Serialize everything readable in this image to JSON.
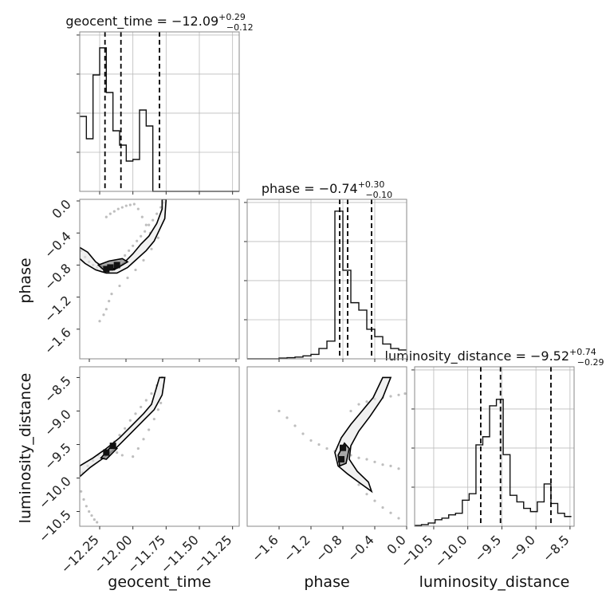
{
  "chart_data": [
    {
      "type": "histogram",
      "panel": "geocent_time-marginal",
      "title": {
        "param": "geocent_time",
        "median": "−12.09",
        "upper": "+0.29",
        "lower": "−0.12"
      },
      "x": [
        -12.4,
        -12.35,
        -12.3,
        -12.25,
        -12.2,
        -12.15,
        -12.1,
        -12.05,
        -12.0,
        -11.95,
        -11.9,
        -11.85,
        -11.8,
        -11.75,
        -11.7,
        -11.65,
        -11.6,
        -11.55,
        -11.5,
        -11.45,
        -11.4,
        -11.35,
        -11.3,
        -11.25,
        -11.2
      ],
      "values": [
        0.47,
        0.33,
        0.73,
        0.9,
        0.62,
        0.38,
        0.29,
        0.19,
        0.2,
        0.51,
        0.41,
        0.0,
        0.0,
        0.0,
        0.0,
        0.0,
        0.0,
        0.0,
        0.0,
        0.0,
        0.0,
        0.0,
        0.0,
        0.0
      ],
      "quantiles": [
        -12.21,
        -12.09,
        -11.8
      ],
      "xlim": [
        -12.4,
        -11.2
      ],
      "ylim": [
        0,
        1.0
      ],
      "xticks": [
        "−12.25",
        "−12.00",
        "−11.75",
        "−11.50",
        "−11.25"
      ],
      "xtick_values": [
        -12.25,
        -12.0,
        -11.75,
        -11.5,
        -11.25
      ],
      "yticks": 4,
      "grid": true
    },
    {
      "type": "histogram",
      "panel": "phase-marginal",
      "title": {
        "param": "phase",
        "median": "−0.74",
        "upper": "+0.30",
        "lower": "−0.10"
      },
      "x": [
        -2.0,
        -1.9,
        -1.8,
        -1.7,
        -1.6,
        -1.5,
        -1.4,
        -1.3,
        -1.2,
        -1.1,
        -1.0,
        -0.9,
        -0.8,
        -0.7,
        -0.6,
        -0.5,
        -0.4,
        -0.3,
        -0.2,
        -0.1,
        0.0
      ],
      "values": [
        0.0,
        0.0,
        0.0,
        0.0,
        0.005,
        0.008,
        0.012,
        0.02,
        0.03,
        0.07,
        0.12,
        1.0,
        0.6,
        0.38,
        0.33,
        0.2,
        0.15,
        0.1,
        0.07,
        0.06
      ],
      "quantiles": [
        -0.84,
        -0.74,
        -0.44
      ],
      "xlim": [
        -2.0,
        0.0
      ],
      "ylim": [
        0,
        1.08
      ],
      "xticks": [
        "−1.6",
        "−1.2",
        "−0.8",
        "−0.4",
        "0.0"
      ],
      "xtick_values": [
        -1.6,
        -1.2,
        -0.8,
        -0.4,
        0.0
      ],
      "yticks": 4,
      "grid": true
    },
    {
      "type": "histogram",
      "panel": "luminosity_distance-marginal",
      "title": {
        "param": "luminosity_distance",
        "median": "−9.52",
        "upper": "+0.74",
        "lower": "−0.29"
      },
      "x": [
        -10.78,
        -10.68,
        -10.58,
        -10.48,
        -10.38,
        -10.28,
        -10.18,
        -10.08,
        -9.98,
        -9.88,
        -9.78,
        -9.68,
        -9.58,
        -9.48,
        -9.38,
        -9.28,
        -9.18,
        -9.08,
        -8.98,
        -8.88,
        -8.78,
        -8.68,
        -8.58,
        -8.48
      ],
      "values": [
        0.005,
        0.01,
        0.02,
        0.04,
        0.05,
        0.07,
        0.08,
        0.16,
        0.2,
        0.5,
        0.55,
        0.74,
        0.78,
        0.44,
        0.19,
        0.15,
        0.11,
        0.09,
        0.15,
        0.26,
        0.14,
        0.08,
        0.06
      ],
      "quantiles": [
        -9.81,
        -9.52,
        -8.78
      ],
      "xlim": [
        -10.78,
        -8.44
      ],
      "ylim": [
        0,
        0.98
      ],
      "xticks": [
        "−10.5",
        "−10.0",
        "−9.5",
        "−9.0",
        "−8.5"
      ],
      "xtick_values": [
        -10.5,
        -10.0,
        -9.5,
        -9.0,
        -8.5
      ],
      "yticks": 4,
      "grid": true
    },
    {
      "type": "scatter",
      "panel": "geocent_time-phase",
      "xlabel": "",
      "ylabel": "phase",
      "xlim": [
        -12.4,
        -11.2
      ],
      "ylim": [
        -1.97,
        0.02
      ],
      "yticks": [
        "0.0",
        "−0.4",
        "−0.8",
        "−1.2",
        "−1.6"
      ],
      "ytick_values": [
        0.0,
        -0.4,
        -0.8,
        -1.2,
        -1.6
      ],
      "x": [
        -12.39,
        -12.36,
        -12.33,
        -12.3,
        -12.27,
        -12.24,
        -12.21,
        -12.18,
        -12.15,
        -12.12,
        -12.09,
        -12.06,
        -12.03,
        -12.0,
        -11.97,
        -11.94,
        -11.91,
        -11.88,
        -11.85,
        -11.82,
        -11.79,
        -11.77,
        -12.2,
        -12.17,
        -12.14,
        -12.11,
        -12.08,
        -12.05,
        -12.02,
        -11.99,
        -11.96,
        -11.93,
        -11.9,
        -11.87,
        -12.25,
        -12.22,
        -12.2,
        -12.18,
        -12.16,
        -12.1,
        -12.04,
        -11.98,
        -11.92,
        -11.86,
        -11.81
      ],
      "y": [
        -0.62,
        -0.7,
        -0.76,
        -0.8,
        -0.83,
        -0.85,
        -0.86,
        -0.85,
        -0.82,
        -0.78,
        -0.74,
        -0.68,
        -0.62,
        -0.56,
        -0.5,
        -0.44,
        -0.38,
        -0.3,
        -0.24,
        -0.16,
        -0.08,
        -0.02,
        -0.2,
        -0.16,
        -0.13,
        -0.1,
        -0.08,
        -0.06,
        -0.05,
        -0.04,
        -0.1,
        -0.2,
        -0.3,
        -0.4,
        -1.5,
        -1.42,
        -1.35,
        -1.25,
        -1.16,
        -1.06,
        -0.96,
        -0.86,
        -0.74,
        -0.6,
        -0.46
      ],
      "contours": [
        {
          "level": "outer",
          "points": [
            [
              -12.4,
              -0.58
            ],
            [
              -12.34,
              -0.64
            ],
            [
              -12.28,
              -0.76
            ],
            [
              -12.22,
              -0.83
            ],
            [
              -12.14,
              -0.86
            ],
            [
              -12.06,
              -0.76
            ],
            [
              -12.0,
              -0.66
            ],
            [
              -11.94,
              -0.54
            ],
            [
              -11.88,
              -0.44
            ],
            [
              -11.82,
              -0.28
            ],
            [
              -11.78,
              -0.1
            ],
            [
              -11.78,
              0.02
            ],
            [
              -11.75,
              0.02
            ],
            [
              -11.76,
              -0.22
            ],
            [
              -11.8,
              -0.36
            ],
            [
              -11.84,
              -0.5
            ],
            [
              -11.9,
              -0.62
            ],
            [
              -11.98,
              -0.74
            ],
            [
              -12.04,
              -0.83
            ],
            [
              -12.12,
              -0.9
            ],
            [
              -12.2,
              -0.9
            ],
            [
              -12.28,
              -0.86
            ],
            [
              -12.36,
              -0.78
            ],
            [
              -12.4,
              -0.72
            ]
          ]
        },
        {
          "level": "inner",
          "points": [
            [
              -12.26,
              -0.8
            ],
            [
              -12.18,
              -0.75
            ],
            [
              -12.08,
              -0.72
            ],
            [
              -12.04,
              -0.76
            ],
            [
              -12.12,
              -0.84
            ],
            [
              -12.22,
              -0.86
            ]
          ]
        }
      ],
      "dense": [
        [
          -12.2,
          -0.85
        ],
        [
          -12.17,
          -0.83
        ],
        [
          -12.12,
          -0.8
        ]
      ]
    },
    {
      "type": "scatter",
      "panel": "geocent_time-luminosity_distance",
      "xlabel": "geocent_time",
      "ylabel": "luminosity_distance",
      "xlim": [
        -12.4,
        -11.2
      ],
      "ylim": [
        -10.72,
        -8.34
      ],
      "xticks": [
        "−12.25",
        "−12.00",
        "−11.75",
        "−11.50",
        "−11.25"
      ],
      "xtick_values": [
        -12.25,
        -12.0,
        -11.75,
        -11.5,
        -11.25
      ],
      "yticks": [
        "−8.5",
        "−9.0",
        "−9.5",
        "−10.0",
        "−10.5"
      ],
      "ytick_values": [
        -8.5,
        -9.0,
        -9.5,
        -10.0,
        -10.5
      ],
      "x": [
        -12.38,
        -12.34,
        -12.3,
        -12.26,
        -12.22,
        -12.18,
        -12.14,
        -12.1,
        -12.06,
        -12.02,
        -11.98,
        -11.94,
        -11.9,
        -11.86,
        -11.82,
        -11.78,
        -12.39,
        -12.37,
        -12.35,
        -12.33,
        -12.31,
        -12.29,
        -12.27,
        -12.0,
        -11.96,
        -11.92,
        -11.88,
        -11.84,
        -11.81,
        -11.79,
        -12.12,
        -12.08
      ],
      "y": [
        -9.92,
        -9.82,
        -9.74,
        -9.66,
        -9.6,
        -9.54,
        -9.46,
        -9.36,
        -9.26,
        -9.14,
        -9.04,
        -8.94,
        -8.84,
        -8.74,
        -8.62,
        -8.5,
        -10.2,
        -10.32,
        -10.42,
        -10.5,
        -10.56,
        -10.62,
        -10.66,
        -9.68,
        -9.56,
        -9.42,
        -9.28,
        -9.12,
        -8.98,
        -8.88,
        -9.62,
        -9.66
      ],
      "contours": [
        {
          "level": "outer",
          "points": [
            [
              -12.4,
              -9.82
            ],
            [
              -12.3,
              -9.7
            ],
            [
              -12.2,
              -9.56
            ],
            [
              -12.1,
              -9.4
            ],
            [
              -12.0,
              -9.2
            ],
            [
              -11.92,
              -9.04
            ],
            [
              -11.86,
              -8.9
            ],
            [
              -11.8,
              -8.5
            ],
            [
              -11.76,
              -8.5
            ],
            [
              -11.78,
              -8.76
            ],
            [
              -11.84,
              -8.98
            ],
            [
              -11.92,
              -9.14
            ],
            [
              -12.02,
              -9.34
            ],
            [
              -12.12,
              -9.54
            ],
            [
              -12.22,
              -9.7
            ],
            [
              -12.32,
              -9.84
            ],
            [
              -12.4,
              -9.98
            ]
          ]
        },
        {
          "level": "inner",
          "points": [
            [
              -12.24,
              -9.7
            ],
            [
              -12.16,
              -9.52
            ],
            [
              -12.12,
              -9.56
            ],
            [
              -12.2,
              -9.72
            ]
          ]
        }
      ],
      "dense": [
        [
          -12.2,
          -9.62
        ],
        [
          -12.15,
          -9.52
        ]
      ]
    },
    {
      "type": "scatter",
      "panel": "phase-luminosity_distance",
      "xlabel": "phase",
      "ylabel": "",
      "xlim": [
        -2.0,
        0.0
      ],
      "ylim": [
        -10.72,
        -8.34
      ],
      "xticks": [
        "−1.6",
        "−1.2",
        "−0.8",
        "−0.4",
        "0.0"
      ],
      "xtick_values": [
        -1.6,
        -1.2,
        -0.8,
        -0.4,
        0.0
      ],
      "x": [
        -1.6,
        -1.5,
        -1.4,
        -1.3,
        -1.2,
        -1.1,
        -1.0,
        -0.9,
        -0.8,
        -0.7,
        -0.6,
        -0.5,
        -0.4,
        -0.3,
        -0.2,
        -0.1,
        -0.6,
        -0.5,
        -0.4,
        -0.3,
        -0.2,
        -0.1,
        -0.7,
        -0.6,
        -0.5,
        -0.4,
        -0.3,
        -0.2,
        -0.1,
        -0.02
      ],
      "y": [
        -9.0,
        -9.1,
        -9.22,
        -9.34,
        -9.44,
        -9.5,
        -9.56,
        -9.6,
        -9.62,
        -9.66,
        -9.7,
        -9.72,
        -9.76,
        -9.8,
        -9.82,
        -9.86,
        -10.1,
        -10.24,
        -10.34,
        -10.44,
        -10.52,
        -10.6,
        -9.0,
        -8.9,
        -8.86,
        -8.82,
        -8.8,
        -8.78,
        -8.76,
        -8.74
      ],
      "contours": [
        {
          "level": "outer",
          "points": [
            [
              -0.9,
              -9.62
            ],
            [
              -0.82,
              -9.4
            ],
            [
              -0.7,
              -9.2
            ],
            [
              -0.56,
              -9.0
            ],
            [
              -0.42,
              -8.8
            ],
            [
              -0.3,
              -8.5
            ],
            [
              -0.2,
              -8.5
            ],
            [
              -0.3,
              -8.8
            ],
            [
              -0.46,
              -9.08
            ],
            [
              -0.6,
              -9.3
            ],
            [
              -0.7,
              -9.52
            ],
            [
              -0.72,
              -9.72
            ],
            [
              -0.62,
              -9.9
            ],
            [
              -0.48,
              -10.06
            ],
            [
              -0.44,
              -10.2
            ],
            [
              -0.58,
              -10.08
            ],
            [
              -0.74,
              -9.94
            ],
            [
              -0.86,
              -9.82
            ]
          ]
        },
        {
          "level": "inner",
          "points": [
            [
              -0.86,
              -9.66
            ],
            [
              -0.78,
              -9.48
            ],
            [
              -0.72,
              -9.56
            ],
            [
              -0.76,
              -9.78
            ],
            [
              -0.84,
              -9.82
            ]
          ]
        }
      ],
      "dense": [
        [
          -0.82,
          -9.72
        ],
        [
          -0.8,
          -9.55
        ]
      ]
    }
  ]
}
